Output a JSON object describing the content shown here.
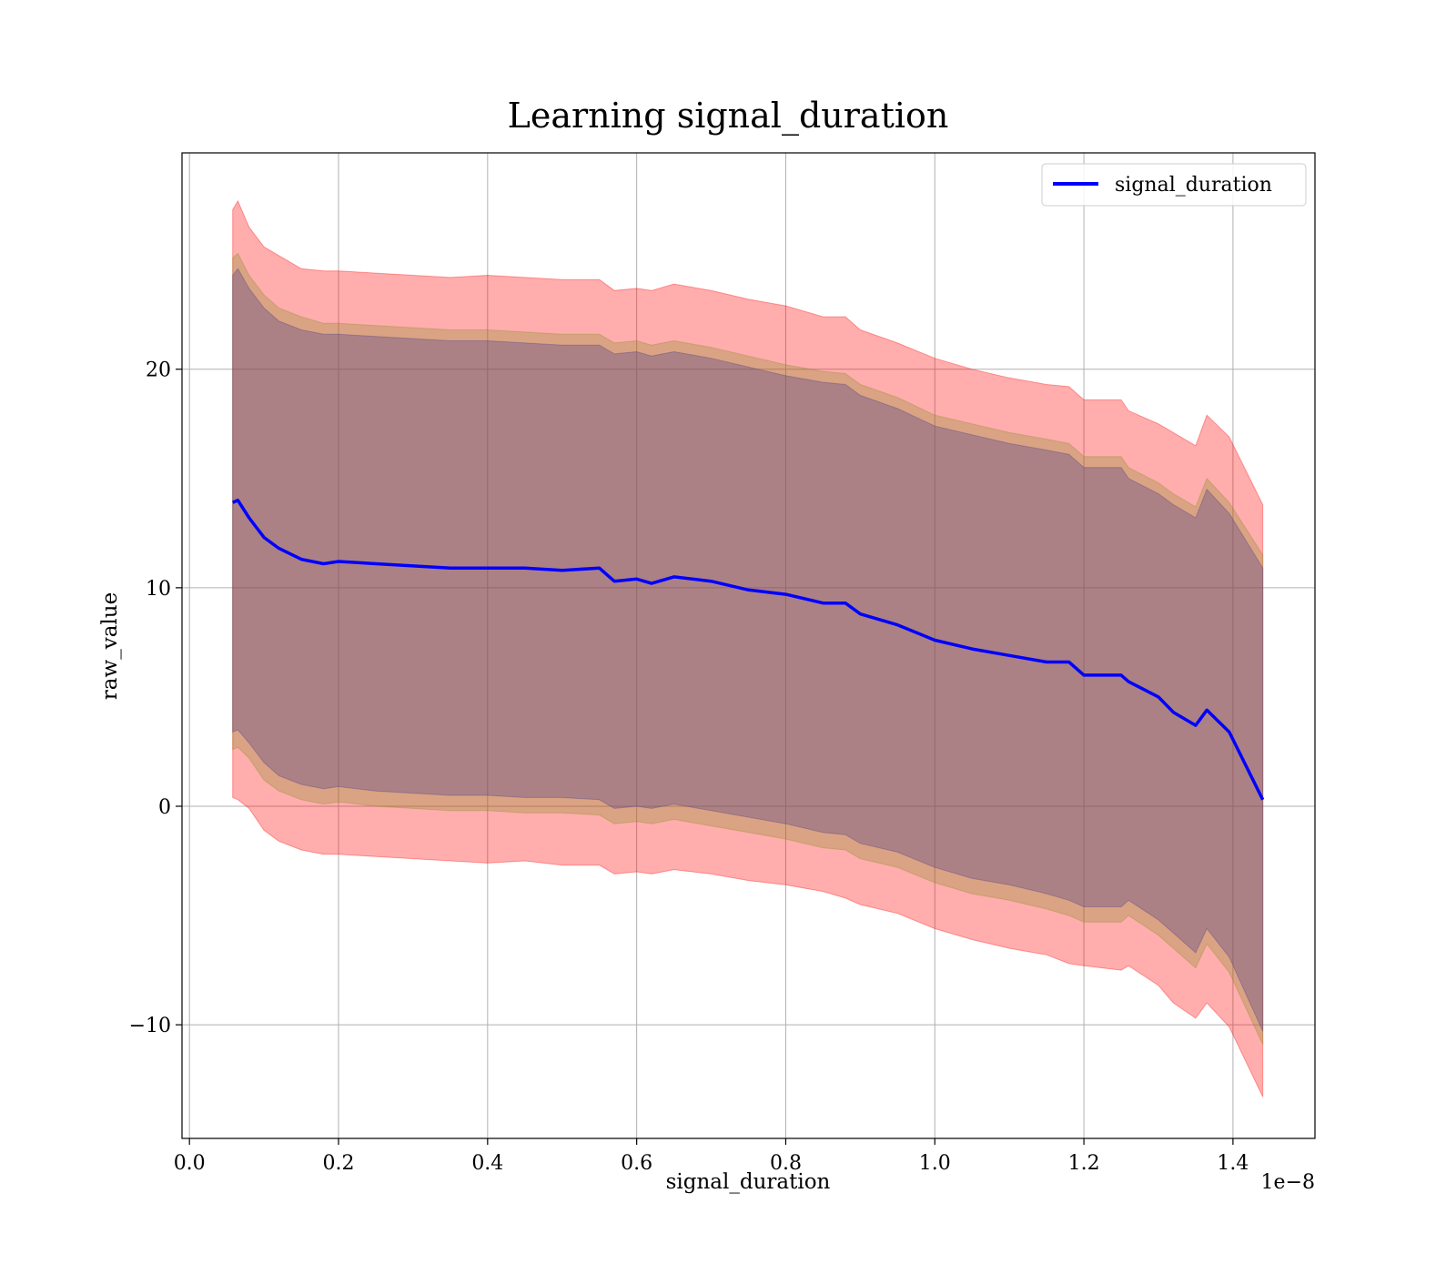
{
  "chart_data": {
    "type": "area",
    "title": "Learning signal_duration",
    "xlabel": "signal_duration",
    "ylabel": "raw_value",
    "x_offset_text": "1e−8",
    "xlim": [
      -0.01,
      1.51
    ],
    "ylim": [
      -15.2,
      29.9
    ],
    "x_ticks": [
      0.0,
      0.2,
      0.4,
      0.6,
      0.8,
      1.0,
      1.2,
      1.4
    ],
    "x_tick_labels": [
      "0.0",
      "0.2",
      "0.4",
      "0.6",
      "0.8",
      "1.0",
      "1.2",
      "1.4"
    ],
    "y_ticks": [
      -10,
      0,
      10,
      20
    ],
    "y_tick_labels": [
      "−10",
      "0",
      "10",
      "20"
    ],
    "grid": true,
    "legend": {
      "position": "top-right",
      "entries": [
        "signal_duration"
      ]
    },
    "x": [
      0.058,
      0.065,
      0.08,
      0.1,
      0.12,
      0.15,
      0.18,
      0.2,
      0.25,
      0.3,
      0.35,
      0.4,
      0.45,
      0.5,
      0.55,
      0.57,
      0.6,
      0.62,
      0.65,
      0.7,
      0.75,
      0.8,
      0.85,
      0.88,
      0.9,
      0.95,
      1.0,
      1.05,
      1.1,
      1.15,
      1.18,
      1.2,
      1.25,
      1.26,
      1.3,
      1.32,
      1.35,
      1.365,
      1.395,
      1.44
    ],
    "series": [
      {
        "name": "signal_duration",
        "color": "#0000ff",
        "values": [
          13.9,
          14.0,
          13.2,
          12.3,
          11.8,
          11.3,
          11.1,
          11.2,
          11.1,
          11.0,
          10.9,
          10.9,
          10.9,
          10.8,
          10.9,
          10.3,
          10.4,
          10.2,
          10.5,
          10.3,
          9.9,
          9.7,
          9.3,
          9.3,
          8.8,
          8.3,
          7.6,
          7.2,
          6.9,
          6.6,
          6.6,
          6.0,
          6.0,
          5.7,
          5.0,
          4.3,
          3.7,
          4.4,
          3.4,
          0.3
        ]
      }
    ],
    "bands": [
      {
        "color": "#ff0000",
        "upper": [
          27.3,
          27.7,
          26.5,
          25.6,
          25.2,
          24.6,
          24.5,
          24.5,
          24.4,
          24.3,
          24.2,
          24.3,
          24.2,
          24.1,
          24.1,
          23.6,
          23.7,
          23.6,
          23.9,
          23.6,
          23.2,
          22.9,
          22.4,
          22.4,
          21.8,
          21.2,
          20.5,
          20.0,
          19.6,
          19.3,
          19.2,
          18.6,
          18.6,
          18.1,
          17.5,
          17.1,
          16.5,
          17.9,
          16.9,
          13.8
        ],
        "lower": [
          0.4,
          0.3,
          -0.1,
          -1.1,
          -1.6,
          -2.0,
          -2.2,
          -2.2,
          -2.3,
          -2.4,
          -2.5,
          -2.6,
          -2.5,
          -2.7,
          -2.7,
          -3.1,
          -3.0,
          -3.1,
          -2.9,
          -3.1,
          -3.4,
          -3.6,
          -3.9,
          -4.2,
          -4.5,
          -4.9,
          -5.6,
          -6.1,
          -6.5,
          -6.8,
          -7.2,
          -7.3,
          -7.5,
          -7.3,
          -8.2,
          -9.0,
          -9.7,
          -9.0,
          -10.1,
          -13.3
        ]
      },
      {
        "color": "#8b8f2a",
        "upper": [
          25.1,
          25.3,
          24.3,
          23.4,
          22.8,
          22.4,
          22.1,
          22.1,
          22.0,
          21.9,
          21.8,
          21.8,
          21.7,
          21.6,
          21.6,
          21.2,
          21.3,
          21.1,
          21.3,
          21.0,
          20.6,
          20.2,
          19.9,
          19.8,
          19.3,
          18.7,
          17.9,
          17.5,
          17.1,
          16.8,
          16.6,
          16.0,
          16.0,
          15.5,
          14.8,
          14.3,
          13.7,
          15.0,
          13.9,
          11.5
        ],
        "lower": [
          2.6,
          2.7,
          2.2,
          1.2,
          0.7,
          0.3,
          0.1,
          0.2,
          0.0,
          -0.1,
          -0.2,
          -0.2,
          -0.3,
          -0.3,
          -0.4,
          -0.8,
          -0.7,
          -0.8,
          -0.6,
          -0.9,
          -1.2,
          -1.5,
          -1.9,
          -2.0,
          -2.4,
          -2.8,
          -3.5,
          -4.0,
          -4.3,
          -4.7,
          -5.0,
          -5.3,
          -5.3,
          -5.0,
          -5.9,
          -6.5,
          -7.4,
          -6.3,
          -7.6,
          -10.9
        ]
      },
      {
        "color": "#4b3c8c",
        "upper": [
          24.3,
          24.6,
          23.7,
          22.8,
          22.2,
          21.8,
          21.6,
          21.6,
          21.5,
          21.4,
          21.3,
          21.3,
          21.2,
          21.1,
          21.1,
          20.7,
          20.8,
          20.6,
          20.8,
          20.5,
          20.1,
          19.7,
          19.4,
          19.3,
          18.8,
          18.2,
          17.4,
          17.0,
          16.6,
          16.3,
          16.1,
          15.5,
          15.5,
          15.0,
          14.3,
          13.8,
          13.2,
          14.5,
          13.4,
          10.9
        ],
        "lower": [
          3.4,
          3.5,
          2.9,
          2.0,
          1.4,
          1.0,
          0.8,
          0.9,
          0.7,
          0.6,
          0.5,
          0.5,
          0.4,
          0.4,
          0.3,
          -0.1,
          0.0,
          -0.1,
          0.1,
          -0.2,
          -0.5,
          -0.8,
          -1.2,
          -1.3,
          -1.7,
          -2.1,
          -2.8,
          -3.3,
          -3.6,
          -4.0,
          -4.3,
          -4.6,
          -4.6,
          -4.3,
          -5.2,
          -5.8,
          -6.7,
          -5.6,
          -6.9,
          -10.3
        ]
      }
    ]
  }
}
